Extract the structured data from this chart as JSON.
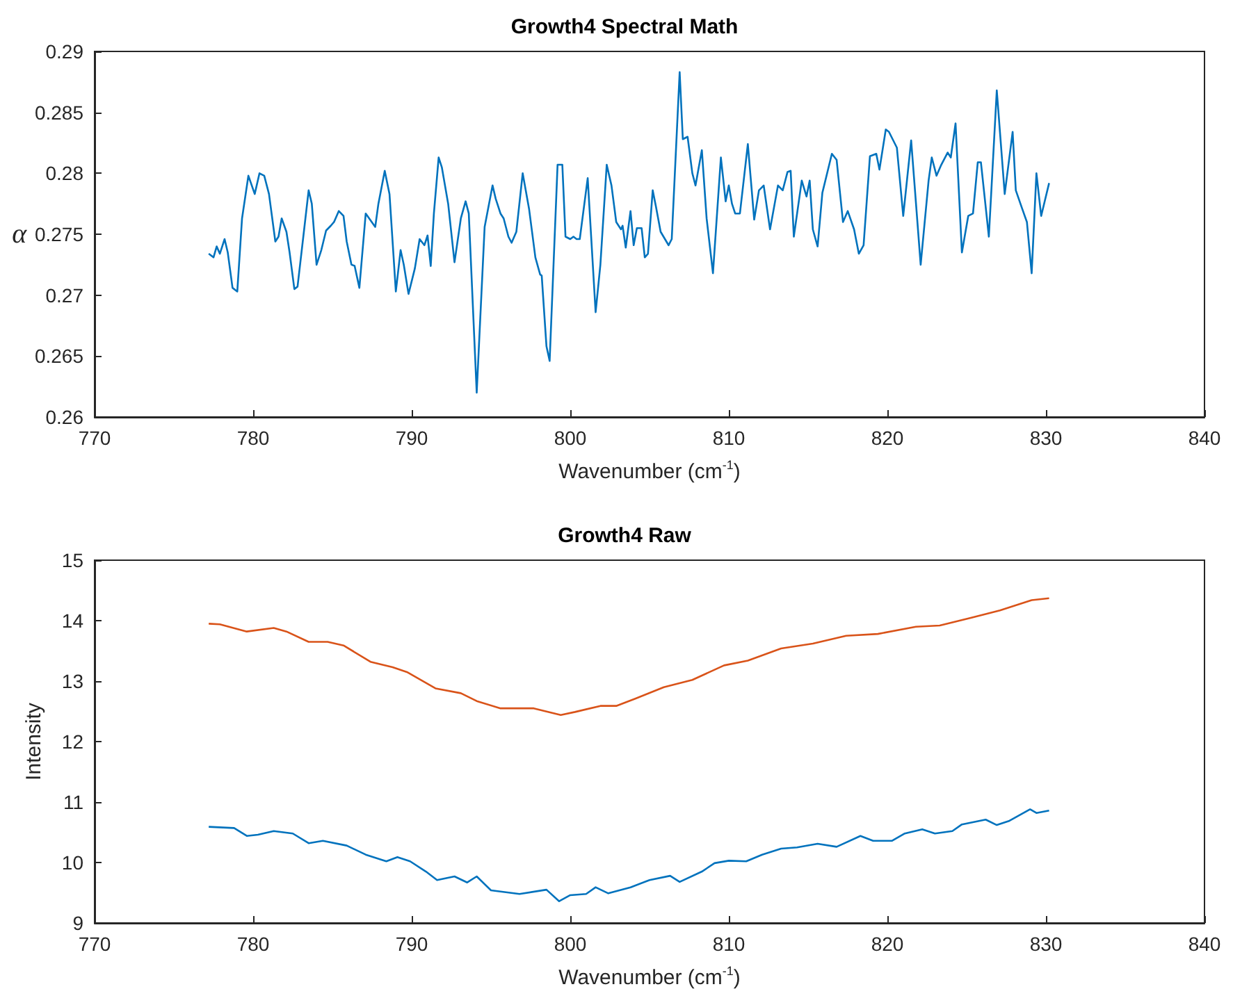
{
  "chart_data": [
    {
      "type": "line",
      "title": "Growth4 Spectral Math",
      "xlabel": "Wavenumber (cm$^{-1}$)",
      "ylabel": "α",
      "xlim": [
        770,
        840
      ],
      "xticks": [
        770,
        780,
        790,
        800,
        810,
        820,
        830,
        840
      ],
      "ylim": [
        0.26,
        0.29
      ],
      "yticks": [
        0.26,
        0.265,
        0.27,
        0.275,
        0.28,
        0.285,
        0.29
      ],
      "series": [
        {
          "color": "#0072bd",
          "x": [
            777.2,
            777.5,
            777.7,
            777.9,
            778.2,
            778.4,
            778.7,
            779.0,
            779.3,
            779.7,
            780.1,
            780.4,
            780.7,
            781.0,
            781.4,
            781.6,
            781.8,
            782.1,
            782.3,
            782.6,
            782.8,
            783.2,
            783.5,
            783.7,
            784.0,
            784.3,
            784.6,
            784.9,
            785.1,
            785.4,
            785.7,
            785.9,
            786.2,
            786.4,
            786.7,
            787.1,
            787.7,
            787.9,
            788.3,
            788.6,
            789.0,
            789.3,
            789.5,
            789.8,
            790.2,
            790.5,
            790.8,
            791.0,
            791.2,
            791.4,
            791.7,
            791.9,
            792.3,
            792.7,
            793.1,
            793.4,
            793.6,
            794.1,
            794.6,
            795.1,
            795.3,
            795.6,
            795.8,
            796.1,
            796.3,
            796.6,
            797.0,
            797.4,
            797.8,
            798.1,
            798.2,
            798.5,
            798.7,
            799.2,
            799.5,
            799.7,
            800.0,
            800.2,
            800.4,
            800.6,
            801.1,
            801.6,
            801.9,
            802.3,
            802.6,
            802.9,
            803.2,
            803.3,
            803.5,
            803.8,
            804.0,
            804.2,
            804.5,
            804.7,
            804.9,
            805.2,
            805.4,
            805.7,
            806.2,
            806.4,
            806.9,
            807.1,
            807.4,
            807.7,
            807.9,
            808.3,
            808.6,
            809.0,
            809.5,
            809.8,
            810.0,
            810.2,
            810.4,
            810.7,
            811.2,
            811.6,
            811.9,
            812.2,
            812.6,
            813.1,
            813.4,
            813.7,
            813.9,
            814.1,
            814.6,
            814.9,
            815.1,
            815.3,
            815.6,
            815.9,
            816.5,
            816.8,
            817.2,
            817.5,
            817.9,
            818.2,
            818.5,
            818.9,
            819.3,
            819.5,
            819.9,
            820.1,
            820.6,
            821.0,
            821.5,
            822.1,
            822.6,
            822.8,
            823.1,
            823.4,
            823.8,
            824.0,
            824.3,
            824.7,
            825.1,
            825.4,
            825.7,
            825.9,
            826.4,
            826.9,
            827.4,
            827.9,
            828.1,
            828.5,
            828.8,
            829.1,
            829.4,
            829.7,
            830.2
          ],
          "values": [
            0.2734,
            0.2731,
            0.274,
            0.2734,
            0.2746,
            0.2735,
            0.2706,
            0.2703,
            0.2763,
            0.2798,
            0.2783,
            0.28,
            0.2798,
            0.2783,
            0.2744,
            0.2748,
            0.2763,
            0.2752,
            0.2735,
            0.2705,
            0.2707,
            0.2752,
            0.2786,
            0.2775,
            0.2725,
            0.2737,
            0.2753,
            0.2757,
            0.276,
            0.2769,
            0.2765,
            0.2744,
            0.2725,
            0.2724,
            0.2706,
            0.2767,
            0.2756,
            0.2775,
            0.2802,
            0.2783,
            0.2703,
            0.2737,
            0.2725,
            0.2701,
            0.2722,
            0.2746,
            0.2741,
            0.2749,
            0.2724,
            0.2767,
            0.2813,
            0.2805,
            0.2775,
            0.2727,
            0.2763,
            0.2777,
            0.2767,
            0.262,
            0.2756,
            0.279,
            0.2779,
            0.2767,
            0.2763,
            0.2748,
            0.2743,
            0.2752,
            0.28,
            0.2771,
            0.2731,
            0.2717,
            0.2716,
            0.2658,
            0.2646,
            0.2807,
            0.2807,
            0.2748,
            0.2746,
            0.2748,
            0.2746,
            0.2746,
            0.2796,
            0.2686,
            0.2725,
            0.2807,
            0.279,
            0.276,
            0.2754,
            0.2757,
            0.2739,
            0.2769,
            0.2741,
            0.2755,
            0.2755,
            0.2731,
            0.2734,
            0.2786,
            0.2773,
            0.2752,
            0.2741,
            0.2746,
            0.2883,
            0.2828,
            0.283,
            0.28,
            0.279,
            0.2819,
            0.2763,
            0.2718,
            0.2813,
            0.2777,
            0.279,
            0.2775,
            0.2767,
            0.2767,
            0.2824,
            0.2762,
            0.2786,
            0.279,
            0.2754,
            0.279,
            0.2786,
            0.2801,
            0.2802,
            0.2748,
            0.2794,
            0.2781,
            0.2794,
            0.2754,
            0.274,
            0.2784,
            0.2816,
            0.2811,
            0.276,
            0.2769,
            0.2754,
            0.2734,
            0.2741,
            0.2814,
            0.2816,
            0.2803,
            0.2836,
            0.2834,
            0.2821,
            0.2765,
            0.2827,
            0.2725,
            0.2794,
            0.2813,
            0.2798,
            0.2807,
            0.2817,
            0.2813,
            0.2841,
            0.2735,
            0.2765,
            0.2767,
            0.2809,
            0.2809,
            0.2748,
            0.2868,
            0.2783,
            0.2834,
            0.2786,
            0.2771,
            0.276,
            0.2718,
            0.28,
            0.2765,
            0.2792
          ]
        }
      ]
    },
    {
      "type": "line",
      "title": "Growth4 Raw",
      "xlabel": "Wavenumber (cm$^{-1}$)",
      "ylabel": "Intensity",
      "xlim": [
        770,
        840
      ],
      "xticks": [
        770,
        780,
        790,
        800,
        810,
        820,
        830,
        840
      ],
      "ylim": [
        9,
        15
      ],
      "yticks": [
        9,
        10,
        11,
        12,
        13,
        14,
        15
      ],
      "series": [
        {
          "color": "#0072bd",
          "x": [
            777.2,
            778.8,
            779.6,
            780.3,
            781.3,
            782.5,
            783.5,
            784.4,
            785.9,
            787.1,
            788.4,
            789.1,
            789.9,
            790.9,
            791.6,
            792.7,
            793.5,
            794.1,
            795.0,
            796.8,
            798.5,
            799.3,
            800.0,
            801.0,
            801.6,
            802.4,
            803.8,
            805.0,
            806.3,
            806.9,
            808.3,
            809.1,
            810.0,
            811.1,
            812.1,
            813.3,
            814.3,
            815.6,
            816.8,
            818.3,
            819.1,
            820.3,
            821.1,
            822.2,
            823.0,
            824.1,
            824.7,
            826.2,
            826.9,
            827.7,
            829.0,
            829.4,
            830.2
          ],
          "values": [
            10.59,
            10.57,
            10.44,
            10.46,
            10.52,
            10.48,
            10.32,
            10.36,
            10.28,
            10.13,
            10.02,
            10.09,
            10.02,
            9.85,
            9.71,
            9.77,
            9.67,
            9.77,
            9.54,
            9.48,
            9.55,
            9.36,
            9.46,
            9.48,
            9.59,
            9.49,
            9.59,
            9.71,
            9.78,
            9.68,
            9.85,
            9.99,
            10.03,
            10.02,
            10.13,
            10.23,
            10.25,
            10.31,
            10.26,
            10.44,
            10.36,
            10.36,
            10.48,
            10.55,
            10.48,
            10.52,
            10.63,
            10.71,
            10.62,
            10.69,
            10.88,
            10.82,
            10.86
          ]
        },
        {
          "color": "#d95319",
          "x": [
            777.2,
            777.9,
            779.6,
            781.3,
            782.1,
            783.5,
            784.7,
            785.7,
            787.4,
            788.8,
            789.7,
            791.5,
            793.1,
            794.1,
            795.6,
            797.7,
            799.4,
            800.3,
            801.9,
            802.9,
            804.1,
            805.9,
            807.7,
            809.7,
            811.2,
            813.3,
            815.3,
            817.4,
            819.4,
            821.8,
            823.3,
            825.3,
            827.1,
            829.1,
            830.2
          ],
          "values": [
            13.95,
            13.94,
            13.82,
            13.88,
            13.82,
            13.65,
            13.65,
            13.59,
            13.32,
            13.23,
            13.15,
            12.88,
            12.8,
            12.67,
            12.55,
            12.55,
            12.44,
            12.49,
            12.59,
            12.59,
            12.71,
            12.9,
            13.02,
            13.26,
            13.34,
            13.54,
            13.62,
            13.75,
            13.78,
            13.9,
            13.92,
            14.05,
            14.17,
            14.34,
            14.37
          ]
        }
      ]
    }
  ]
}
